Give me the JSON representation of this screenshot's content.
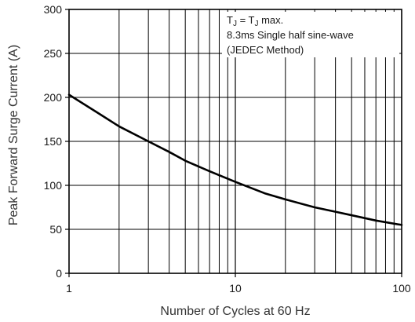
{
  "chart_data": {
    "type": "line",
    "xlabel": "Number of Cycles at 60 Hz",
    "ylabel": "Peak Forward Surge Current (A)",
    "x_scale": "log",
    "xlim": [
      1,
      100
    ],
    "ylim": [
      0,
      300
    ],
    "grid": true,
    "x_ticks": [
      1,
      10,
      100
    ],
    "x_tick_labels": [
      "1",
      "10",
      "100"
    ],
    "y_ticks": [
      0,
      50,
      100,
      150,
      200,
      250,
      300
    ],
    "y_tick_labels": [
      "0",
      "50",
      "100",
      "150",
      "200",
      "250",
      "300"
    ],
    "annotation": {
      "line1_prefix": "T",
      "line1_sub1": "J",
      "line1_mid": " = T",
      "line1_sub2": "J",
      "line1_suffix": " max.",
      "line2": "8.3ms Single half sine-wave",
      "line3": "(JEDEC Method)"
    },
    "series": [
      {
        "x": [
          1,
          1.5,
          2,
          3,
          4,
          5,
          7,
          10,
          15,
          20,
          30,
          40,
          50,
          70,
          100
        ],
        "y": [
          203,
          182,
          167,
          150,
          138,
          128,
          116,
          104,
          91,
          84,
          75,
          70,
          66,
          60,
          55
        ]
      }
    ],
    "colors": {
      "background": "#ffffff",
      "grid": "#000000",
      "line": "#000000",
      "text": "#1a1a1a"
    }
  }
}
